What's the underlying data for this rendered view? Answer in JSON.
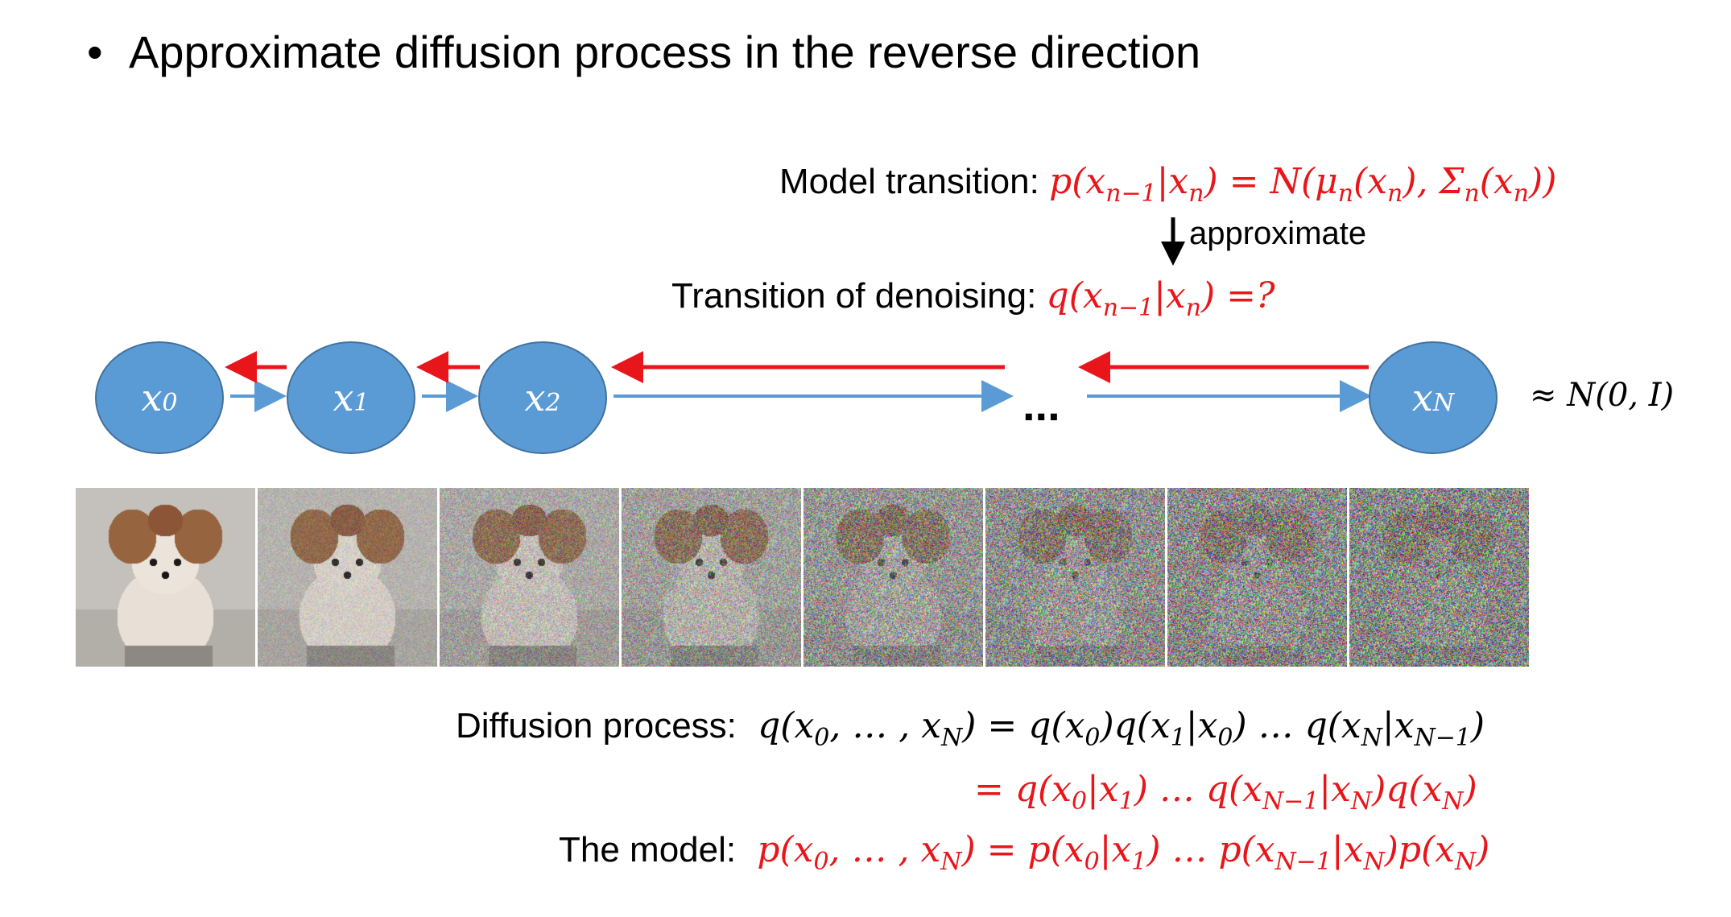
{
  "bullet": {
    "marker": "•",
    "text": "Approximate diffusion process in the reverse direction"
  },
  "model_transition": {
    "label": "Model transition:",
    "formula": "p(xn−1|xn) = N(μn(xn), Σn(xn))"
  },
  "approximate": {
    "label": "approximate"
  },
  "denoising": {
    "label": "Transition of denoising:",
    "formula": "q(xn−1|xn) =?"
  },
  "nodes": [
    {
      "var": "x",
      "sub": "0"
    },
    {
      "var": "x",
      "sub": "1"
    },
    {
      "var": "x",
      "sub": "2"
    },
    {
      "var": "x",
      "sub": "N"
    }
  ],
  "ellipsis": "...",
  "prior": "≈ N(0, I)",
  "diffusion": {
    "label": "Diffusion process:",
    "formula1": "q(x0, … , xN) = q(x0)q(x1|x0) … q(xN|xN−1)",
    "formula2": "= q(x0|x1) … q(xN−1|xN)q(xN)"
  },
  "model": {
    "label": "The model:",
    "formula": "p(x0, … , xN) = p(x0|x1) … p(xN−1|xN)p(xN)"
  },
  "image_strip": {
    "frames": 8,
    "noise_levels": [
      0,
      0.25,
      0.45,
      0.6,
      0.78,
      0.88,
      0.95,
      1.0
    ]
  },
  "colors": {
    "node_fill": "#5b9bd5",
    "forward_arrow": "#5b9bd5",
    "reverse_arrow": "#e8161a",
    "formula_red": "#e8161a"
  }
}
